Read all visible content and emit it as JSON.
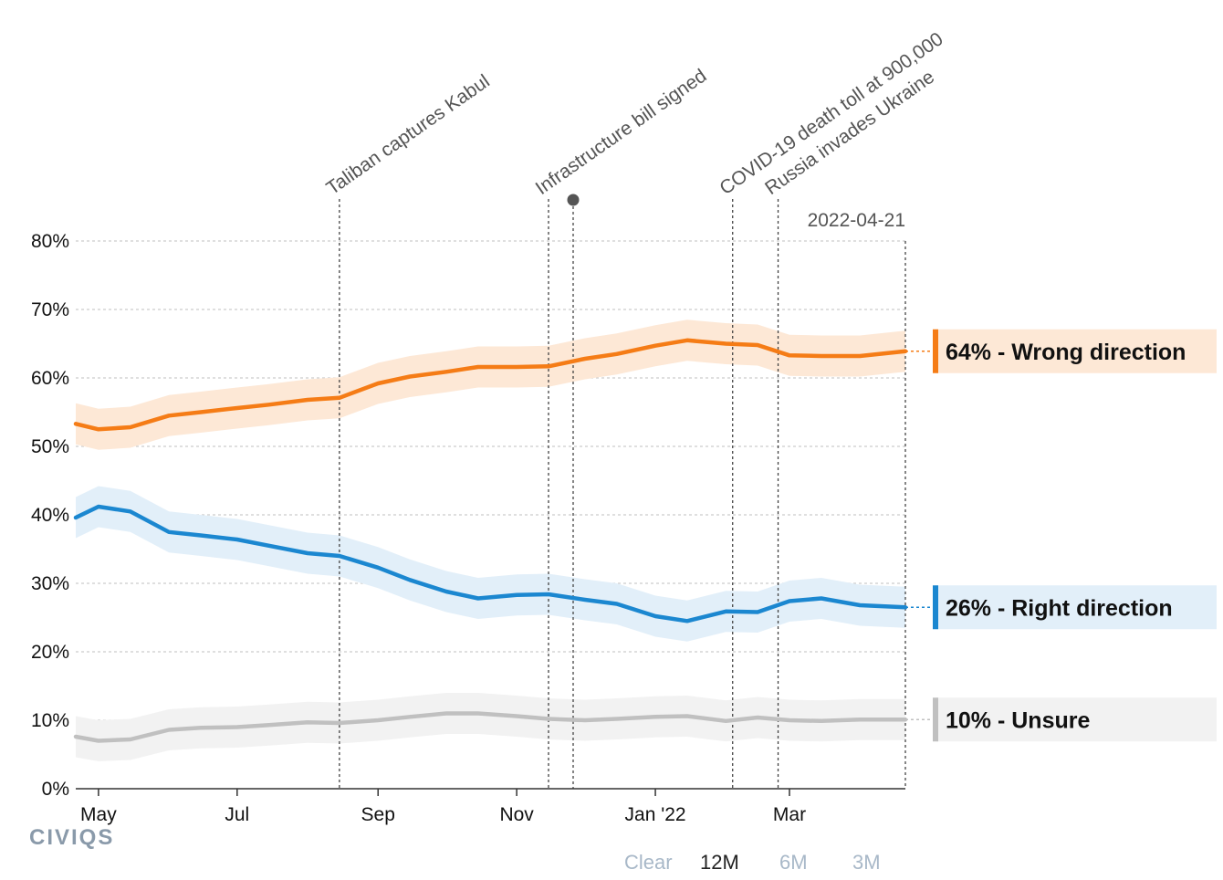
{
  "chart_data": {
    "type": "line",
    "ylim": [
      0,
      80
    ],
    "yticks": [
      "0%",
      "10%",
      "20%",
      "30%",
      "40%",
      "50%",
      "60%",
      "70%",
      "80%"
    ],
    "xticks": [
      {
        "date": "2021-05-01",
        "label": "May"
      },
      {
        "date": "2021-07-01",
        "label": "Jul"
      },
      {
        "date": "2021-09-01",
        "label": "Sep"
      },
      {
        "date": "2021-11-01",
        "label": "Nov"
      },
      {
        "date": "2022-01-01",
        "label": "Jan '22"
      },
      {
        "date": "2022-03-01",
        "label": "Mar"
      }
    ],
    "end_date_label": "2022-04-21",
    "grid": true,
    "annotations": [
      {
        "date": "2021-08-15",
        "label": "Taliban captures Kabul"
      },
      {
        "date": "2021-11-15",
        "label": "Infrastructure bill signed"
      },
      {
        "date": "2022-02-04",
        "label": "COVID-19 death toll at 900,000"
      },
      {
        "date": "2022-02-24",
        "label": "Russia invades Ukraine"
      }
    ],
    "series": [
      {
        "name": "Wrong direction",
        "end_label": "64% - Wrong direction",
        "color": "#f57c16",
        "band_color": "#fde8d6",
        "points": [
          [
            "2021-04-21",
            53.3
          ],
          [
            "2021-05-01",
            52.5
          ],
          [
            "2021-05-15",
            52.8
          ],
          [
            "2021-06-01",
            54.5
          ],
          [
            "2021-06-15",
            55.0
          ],
          [
            "2021-07-01",
            55.6
          ],
          [
            "2021-07-15",
            56.1
          ],
          [
            "2021-08-01",
            56.8
          ],
          [
            "2021-08-15",
            57.1
          ],
          [
            "2021-09-01",
            59.2
          ],
          [
            "2021-09-15",
            60.2
          ],
          [
            "2021-10-01",
            60.9
          ],
          [
            "2021-10-15",
            61.6
          ],
          [
            "2021-11-01",
            61.6
          ],
          [
            "2021-11-15",
            61.7
          ],
          [
            "2021-12-01",
            62.8
          ],
          [
            "2021-12-15",
            63.5
          ],
          [
            "2022-01-01",
            64.7
          ],
          [
            "2022-01-15",
            65.5
          ],
          [
            "2022-02-01",
            65.0
          ],
          [
            "2022-02-15",
            64.8
          ],
          [
            "2022-03-01",
            63.3
          ],
          [
            "2022-03-15",
            63.2
          ],
          [
            "2022-04-01",
            63.2
          ],
          [
            "2022-04-21",
            63.9
          ]
        ]
      },
      {
        "name": "Right direction",
        "end_label": "26% - Right direction",
        "color": "#1b87d0",
        "band_color": "#e2eff9",
        "points": [
          [
            "2021-04-21",
            39.6
          ],
          [
            "2021-05-01",
            41.2
          ],
          [
            "2021-05-15",
            40.5
          ],
          [
            "2021-06-01",
            37.5
          ],
          [
            "2021-06-15",
            37.0
          ],
          [
            "2021-07-01",
            36.4
          ],
          [
            "2021-07-15",
            35.5
          ],
          [
            "2021-08-01",
            34.4
          ],
          [
            "2021-08-15",
            34.0
          ],
          [
            "2021-09-01",
            32.3
          ],
          [
            "2021-09-15",
            30.5
          ],
          [
            "2021-10-01",
            28.8
          ],
          [
            "2021-10-15",
            27.8
          ],
          [
            "2021-11-01",
            28.3
          ],
          [
            "2021-11-15",
            28.4
          ],
          [
            "2021-12-01",
            27.6
          ],
          [
            "2021-12-15",
            27.0
          ],
          [
            "2022-01-01",
            25.2
          ],
          [
            "2022-01-15",
            24.5
          ],
          [
            "2022-02-01",
            25.9
          ],
          [
            "2022-02-15",
            25.8
          ],
          [
            "2022-03-01",
            27.4
          ],
          [
            "2022-03-15",
            27.8
          ],
          [
            "2022-04-01",
            26.8
          ],
          [
            "2022-04-21",
            26.5
          ]
        ]
      },
      {
        "name": "Unsure",
        "end_label": "10% - Unsure",
        "color": "#c0c0c0",
        "band_color": "#f2f2f2",
        "points": [
          [
            "2021-04-21",
            7.6
          ],
          [
            "2021-05-01",
            7.0
          ],
          [
            "2021-05-15",
            7.2
          ],
          [
            "2021-06-01",
            8.6
          ],
          [
            "2021-06-15",
            8.9
          ],
          [
            "2021-07-01",
            9.0
          ],
          [
            "2021-07-15",
            9.3
          ],
          [
            "2021-08-01",
            9.7
          ],
          [
            "2021-08-15",
            9.6
          ],
          [
            "2021-09-01",
            10.0
          ],
          [
            "2021-09-15",
            10.5
          ],
          [
            "2021-10-01",
            11.0
          ],
          [
            "2021-10-15",
            11.0
          ],
          [
            "2021-11-01",
            10.6
          ],
          [
            "2021-11-15",
            10.2
          ],
          [
            "2021-12-01",
            10.0
          ],
          [
            "2021-12-15",
            10.2
          ],
          [
            "2022-01-01",
            10.5
          ],
          [
            "2022-01-15",
            10.6
          ],
          [
            "2022-02-01",
            9.9
          ],
          [
            "2022-02-15",
            10.4
          ],
          [
            "2022-03-01",
            10.0
          ],
          [
            "2022-03-15",
            9.9
          ],
          [
            "2022-04-01",
            10.1
          ],
          [
            "2022-04-21",
            10.1
          ]
        ]
      }
    ]
  },
  "logo_text": "CIVIQS",
  "range_controls": {
    "clear_label": "Clear",
    "options": [
      "12M",
      "6M",
      "3M"
    ],
    "active": "12M"
  },
  "colors": {
    "grid": "#cccccc",
    "axis": "#333333",
    "annotation_line": "#444444",
    "inactive_control": "#a8b8c8",
    "active_control": "#222222"
  }
}
